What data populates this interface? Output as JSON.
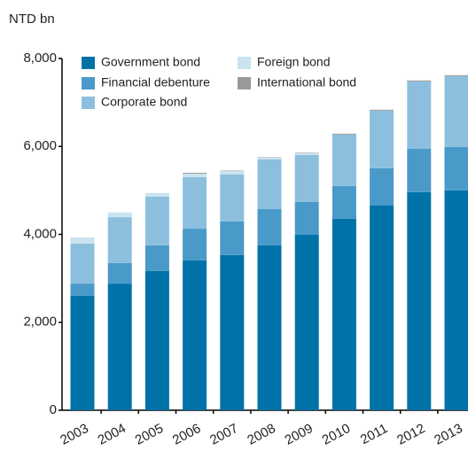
{
  "chart_data": {
    "type": "stacked_bar",
    "y_axis_label": "NTD bn",
    "categories": [
      "2003",
      "2004",
      "2005",
      "2006",
      "2007",
      "2008",
      "2009",
      "2010",
      "2011",
      "2012",
      "2013"
    ],
    "series": [
      {
        "name": "Government bond",
        "color": "#0072a8",
        "values": [
          2600,
          2880,
          3165,
          3410,
          3530,
          3750,
          3990,
          4355,
          4655,
          4960,
          5000
        ]
      },
      {
        "name": "Financial debenture",
        "color": "#4a9ac9",
        "values": [
          280,
          470,
          585,
          720,
          765,
          825,
          750,
          745,
          850,
          990,
          990
        ]
      },
      {
        "name": "Corporate bond",
        "color": "#8cbfdd",
        "values": [
          910,
          1040,
          1110,
          1170,
          1065,
          1130,
          1065,
          1170,
          1310,
          1530,
          1610
        ]
      },
      {
        "name": "Foreign bond",
        "color": "#c9e3ef",
        "values": [
          140,
          110,
          80,
          80,
          80,
          40,
          40,
          0,
          0,
          0,
          0
        ]
      },
      {
        "name": "International bond",
        "color": "#999999",
        "values": [
          0,
          0,
          0,
          20,
          10,
          10,
          10,
          20,
          20,
          20,
          20
        ]
      }
    ],
    "ylim": [
      0,
      8000
    ],
    "yticks": [
      0,
      {
        "value": 2000,
        "label": "2,000"
      },
      {
        "value": 4000,
        "label": "4,000"
      },
      {
        "value": 6000,
        "label": "6,000"
      },
      {
        "value": 8000,
        "label": "8,000"
      }
    ],
    "grid": false
  }
}
